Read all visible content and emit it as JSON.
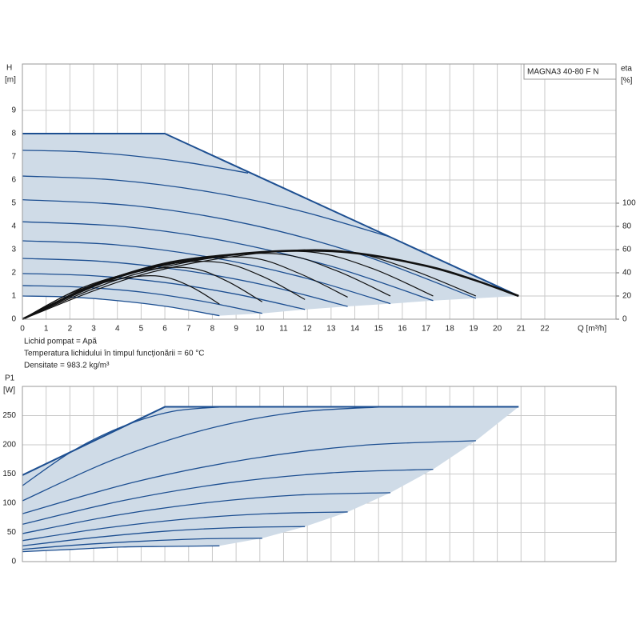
{
  "chart_data": [
    {
      "type": "line",
      "title": "MAGNA3 40-80 F N",
      "ylabel": [
        "H",
        "[m]"
      ],
      "y2label": [
        "eta",
        "[%]"
      ],
      "xlabel": "Q [m³/h]",
      "notes": [
        "Lichid pompat = Apă",
        "Temperatura lichidului în timpul funcționării = 60 °C",
        "Densitate = 983.2 kg/m³"
      ],
      "xlim": [
        0,
        25
      ],
      "ylim": [
        0,
        11
      ],
      "y2lim": [
        0,
        220
      ],
      "xticks": [
        0,
        1,
        2,
        3,
        4,
        5,
        6,
        7,
        8,
        9,
        10,
        11,
        12,
        13,
        14,
        15,
        16,
        17,
        18,
        19,
        20,
        21,
        22
      ],
      "yticks": [
        0,
        1,
        2,
        3,
        4,
        5,
        6,
        7,
        8,
        9
      ],
      "y2ticks": [
        0,
        20,
        40,
        60,
        80,
        100
      ],
      "grid": true,
      "smooth": true,
      "area_color": "#cfdbe7",
      "series": [
        {
          "color": "#1d4f91",
          "width": 2,
          "smooth": false,
          "x": [
            0,
            6,
            20.9
          ],
          "values": [
            8,
            8,
            1.0
          ]
        },
        {
          "color": "#1d4f91",
          "width": 1.3,
          "x": [
            0,
            2.1,
            4.2,
            6.2,
            8.3
          ],
          "values": [
            1.0,
            0.95,
            0.78,
            0.53,
            0.15
          ]
        },
        {
          "color": "#1d4f91",
          "width": 1.3,
          "x": [
            0,
            2.5,
            5.1,
            7.6,
            10.1
          ],
          "values": [
            1.45,
            1.38,
            1.16,
            0.77,
            0.25
          ]
        },
        {
          "color": "#1d4f91",
          "width": 1.3,
          "x": [
            0,
            3,
            6,
            9,
            11.9
          ],
          "values": [
            1.97,
            1.87,
            1.58,
            1.08,
            0.42
          ]
        },
        {
          "color": "#1d4f91",
          "width": 1.3,
          "x": [
            0,
            3.4,
            6.9,
            10.3,
            13.7
          ],
          "values": [
            2.62,
            2.49,
            2.09,
            1.45,
            0.55
          ]
        },
        {
          "color": "#1d4f91",
          "width": 1.3,
          "x": [
            0,
            3.9,
            7.8,
            11.6,
            15.5
          ],
          "values": [
            3.38,
            3.21,
            2.69,
            1.86,
            0.67
          ]
        },
        {
          "color": "#1d4f91",
          "width": 1.3,
          "x": [
            0,
            4.3,
            8.7,
            13,
            17.3
          ],
          "values": [
            4.2,
            3.99,
            3.34,
            2.28,
            0.8
          ]
        },
        {
          "color": "#1d4f91",
          "width": 1.3,
          "x": [
            0,
            4.8,
            9.6,
            14.3,
            19.1
          ],
          "values": [
            5.15,
            4.88,
            4.08,
            2.77,
            0.9
          ]
        },
        {
          "color": "#1d4f91",
          "width": 1.3,
          "x": [
            0,
            3.9,
            7.8,
            11.6,
            15.5
          ],
          "values": [
            6.17,
            6.0,
            5.5,
            4.69,
            3.54
          ]
        },
        {
          "color": "#1d4f91",
          "width": 1.3,
          "x": [
            0,
            2.4,
            4.75,
            7.1,
            9.5
          ],
          "values": [
            7.28,
            7.22,
            7.03,
            6.73,
            6.3
          ]
        },
        {
          "color": "#111111",
          "width": 1.2,
          "axis": "y2",
          "x": [
            0,
            2.1,
            4.2,
            5.8,
            7.1,
            8.3
          ],
          "values": [
            0,
            23,
            35,
            37,
            28,
            13
          ]
        },
        {
          "color": "#111111",
          "width": 1.2,
          "axis": "y2",
          "x": [
            0,
            2.5,
            5.1,
            7.1,
            8.6,
            10.1
          ],
          "values": [
            0,
            27,
            42,
            44,
            33,
            15
          ]
        },
        {
          "color": "#111111",
          "width": 1.2,
          "axis": "y2",
          "x": [
            0,
            3,
            6,
            8.3,
            10.1,
            11.9
          ],
          "values": [
            0,
            30,
            47,
            49,
            37,
            17
          ]
        },
        {
          "color": "#111111",
          "width": 1.2,
          "axis": "y2",
          "x": [
            0,
            3.4,
            6.9,
            9.6,
            11.6,
            13.7
          ],
          "values": [
            0,
            33,
            50,
            53,
            40,
            19
          ]
        },
        {
          "color": "#111111",
          "width": 1.2,
          "axis": "y2",
          "x": [
            0,
            3.9,
            7.8,
            10.9,
            13.2,
            15.5
          ],
          "values": [
            0,
            35,
            53,
            56,
            42,
            20
          ]
        },
        {
          "color": "#111111",
          "width": 1.2,
          "axis": "y2",
          "x": [
            0,
            4.3,
            8.7,
            12.1,
            14.7,
            17.3
          ],
          "values": [
            0,
            36,
            55,
            58,
            44,
            20
          ]
        },
        {
          "color": "#111111",
          "width": 1.2,
          "axis": "y2",
          "x": [
            0,
            4.8,
            9.6,
            13.4,
            16.2,
            19.1
          ],
          "values": [
            0,
            37,
            56,
            59,
            44,
            20
          ]
        },
        {
          "color": "#111111",
          "width": 2.6,
          "axis": "y2",
          "x": [
            0,
            3,
            6,
            9,
            11.5,
            14,
            17,
            19,
            20.9
          ],
          "values": [
            0,
            29,
            48,
            56,
            59,
            57,
            46,
            34,
            20
          ]
        }
      ],
      "boundary": {
        "x": [
          8.3,
          10.1,
          11.9,
          13.7,
          15.5,
          17.3,
          19.1,
          20.9
        ],
        "values": [
          0.15,
          0.25,
          0.42,
          0.55,
          0.67,
          0.8,
          0.9,
          1.0
        ]
      }
    },
    {
      "type": "line",
      "ylabel": [
        "P1",
        "[W]"
      ],
      "xlim": [
        0,
        25
      ],
      "ylim": [
        0,
        300
      ],
      "yticks": [
        0,
        50,
        100,
        150,
        200,
        250
      ],
      "grid": true,
      "smooth": true,
      "area_color": "#cfdbe7",
      "series": [
        {
          "color": "#1d4f91",
          "width": 2,
          "smooth": false,
          "x": [
            0,
            6,
            20.9
          ],
          "values": [
            148,
            265,
            265
          ]
        },
        {
          "color": "#1d4f91",
          "width": 1.3,
          "x": [
            0,
            2.1,
            4.2,
            6.2,
            8.3
          ],
          "values": [
            17,
            21,
            25,
            26,
            27
          ]
        },
        {
          "color": "#1d4f91",
          "width": 1.3,
          "x": [
            0,
            2.5,
            5.1,
            7.6,
            10.1
          ],
          "values": [
            21,
            29,
            35,
            39,
            40
          ]
        },
        {
          "color": "#1d4f91",
          "width": 1.3,
          "x": [
            0,
            3,
            6,
            8.9,
            11.9
          ],
          "values": [
            27,
            41,
            52,
            58,
            60
          ]
        },
        {
          "color": "#1d4f91",
          "width": 1.3,
          "x": [
            0,
            3.4,
            6.9,
            10.3,
            13.7
          ],
          "values": [
            36,
            57,
            73,
            82,
            85
          ]
        },
        {
          "color": "#1d4f91",
          "width": 1.3,
          "x": [
            0,
            3.9,
            7.8,
            11.6,
            15.5
          ],
          "values": [
            48,
            79,
            101,
            114,
            118
          ]
        },
        {
          "color": "#1d4f91",
          "width": 1.3,
          "x": [
            0,
            4.3,
            8.7,
            13,
            17.3
          ],
          "values": [
            64,
            105,
            135,
            152,
            158
          ]
        },
        {
          "color": "#1d4f91",
          "width": 1.3,
          "x": [
            0,
            4.8,
            9.6,
            14.3,
            19.1
          ],
          "values": [
            82,
            137,
            176,
            199,
            207
          ]
        },
        {
          "color": "#1d4f91",
          "width": 1.3,
          "x": [
            0,
            3.8,
            7.6,
            11.4,
            15.2
          ],
          "values": [
            104,
            174,
            225,
            255,
            265
          ]
        },
        {
          "color": "#1d4f91",
          "width": 1.3,
          "x": [
            0,
            2.1,
            4.2,
            6.3,
            8.4
          ],
          "values": [
            130,
            189,
            231,
            257,
            265
          ]
        }
      ],
      "boundary": {
        "x": [
          8.3,
          10.1,
          11.9,
          13.7,
          15.5,
          17.3,
          19.1,
          20.9
        ],
        "values": [
          27,
          40,
          60,
          85,
          118,
          158,
          207,
          265
        ]
      }
    }
  ]
}
